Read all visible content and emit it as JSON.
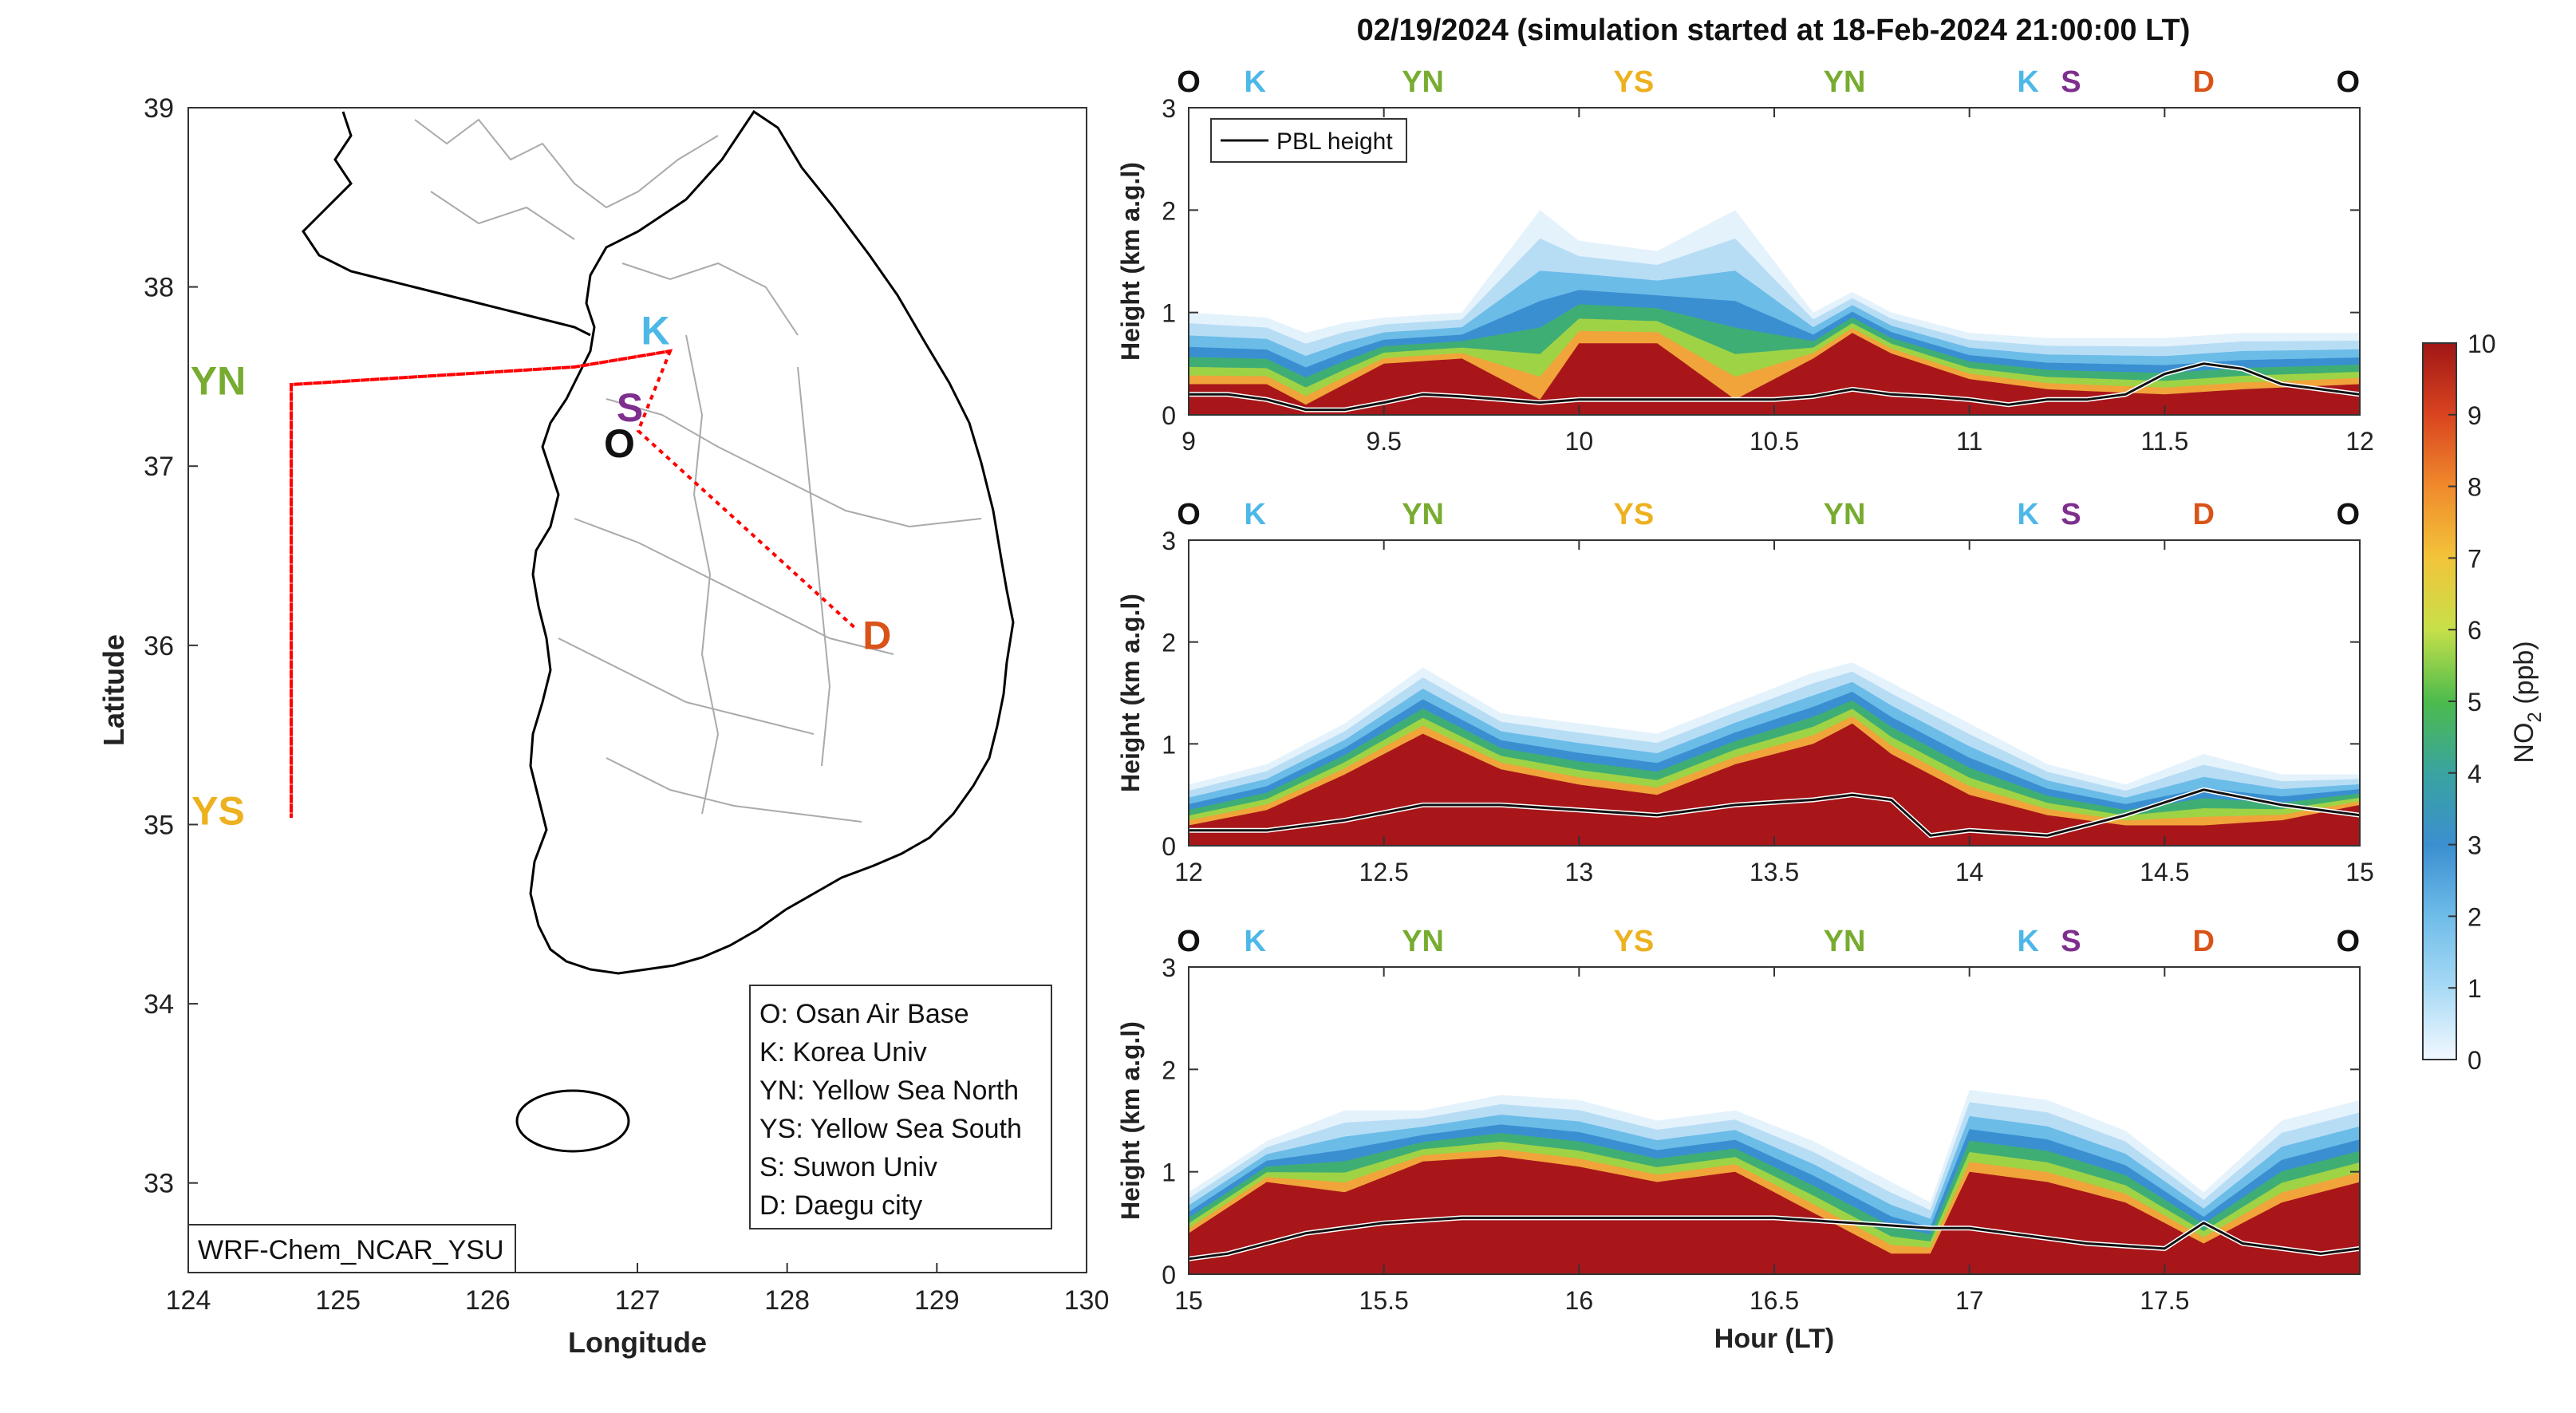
{
  "title": "02/19/2024 (simulation started at 18-Feb-2024 21:00:00 LT)",
  "colors": {
    "O": "#111111",
    "K": "#4db8e8",
    "YN": "#77ac30",
    "YS": "#edb120",
    "S": "#7e2f8e",
    "D": "#d95319",
    "route": "#ff0000",
    "pbl": "#111111"
  },
  "map": {
    "xlabel": "Longitude",
    "ylabel": "Latitude",
    "xlim": [
      124,
      130
    ],
    "ylim": [
      32.5,
      39
    ],
    "xticks": [
      "124",
      "125",
      "126",
      "127",
      "128",
      "129",
      "130"
    ],
    "yticks": [
      "33",
      "34",
      "35",
      "36",
      "37",
      "38",
      "39"
    ],
    "model_label": "WRF-Chem_NCAR_YSU",
    "site_labels": [
      {
        "code": "K",
        "lon": 127.12,
        "lat": 37.68
      },
      {
        "code": "YN",
        "lon": 124.2,
        "lat": 37.4
      },
      {
        "code": "S",
        "lon": 126.95,
        "lat": 37.25
      },
      {
        "code": "O",
        "lon": 126.88,
        "lat": 37.05
      },
      {
        "code": "D",
        "lon": 128.6,
        "lat": 35.98
      },
      {
        "code": "YS",
        "lon": 124.2,
        "lat": 35.0
      }
    ],
    "legend": [
      "O: Osan Air Base",
      "K: Korea Univ",
      "YN: Yellow Sea North",
      "YS: Yellow Sea South",
      "S: Suwon Univ",
      "D: Daegu city"
    ]
  },
  "chart_data": [
    {
      "type": "heatmap",
      "description_of_fill": "NO2 concentration (ppb) vs time and height; dense layer below ~0.5 km",
      "xlim": [
        9,
        12
      ],
      "ylim": [
        0,
        3
      ],
      "xticks": [
        "9",
        "9.5",
        "10",
        "10.5",
        "11",
        "11.5",
        "12"
      ],
      "yticks": [
        "0",
        "1",
        "2",
        "3"
      ],
      "xlabel": "",
      "ylabel": "Height (km a.g.l)",
      "legend": "PBL height",
      "top_labels": [
        {
          "code": "O",
          "x": 9.0
        },
        {
          "code": "K",
          "x": 9.17
        },
        {
          "code": "YN",
          "x": 9.6
        },
        {
          "code": "YS",
          "x": 10.14
        },
        {
          "code": "YN",
          "x": 10.68
        },
        {
          "code": "K",
          "x": 11.15
        },
        {
          "code": "S",
          "x": 11.26
        },
        {
          "code": "D",
          "x": 11.6
        },
        {
          "code": "O",
          "x": 11.97
        }
      ],
      "pbl_height": {
        "x": [
          9.0,
          9.1,
          9.2,
          9.3,
          9.4,
          9.5,
          9.6,
          9.7,
          9.8,
          9.9,
          10.0,
          10.1,
          10.2,
          10.3,
          10.4,
          10.5,
          10.6,
          10.7,
          10.8,
          10.9,
          11.0,
          11.1,
          11.2,
          11.3,
          11.4,
          11.5,
          11.6,
          11.7,
          11.8,
          11.9,
          12.0
        ],
        "y": [
          0.2,
          0.2,
          0.15,
          0.05,
          0.05,
          0.12,
          0.2,
          0.18,
          0.15,
          0.12,
          0.15,
          0.15,
          0.15,
          0.15,
          0.15,
          0.15,
          0.18,
          0.25,
          0.2,
          0.18,
          0.15,
          0.1,
          0.15,
          0.15,
          0.2,
          0.4,
          0.5,
          0.45,
          0.3,
          0.25,
          0.2
        ]
      },
      "no2_layer_top": {
        "x": [
          9.0,
          9.2,
          9.3,
          9.4,
          9.5,
          9.7,
          9.9,
          10.0,
          10.2,
          10.4,
          10.6,
          10.7,
          10.8,
          11.0,
          11.2,
          11.5,
          11.7,
          12.0
        ],
        "y": [
          1.0,
          0.95,
          0.8,
          0.9,
          0.95,
          1.0,
          2.0,
          1.7,
          1.6,
          2.0,
          1.0,
          1.2,
          1.0,
          0.8,
          0.75,
          0.75,
          0.8,
          0.8
        ]
      },
      "no2_core_top": {
        "x": [
          9.0,
          9.2,
          9.3,
          9.4,
          9.5,
          9.7,
          9.9,
          10.0,
          10.2,
          10.4,
          10.6,
          10.7,
          10.8,
          11.0,
          11.2,
          11.5,
          11.7,
          12.0
        ],
        "y": [
          0.3,
          0.3,
          0.1,
          0.3,
          0.5,
          0.55,
          0.15,
          0.7,
          0.7,
          0.15,
          0.55,
          0.8,
          0.6,
          0.35,
          0.25,
          0.2,
          0.25,
          0.3
        ]
      }
    },
    {
      "type": "heatmap",
      "xlim": [
        12,
        15
      ],
      "ylim": [
        0,
        3
      ],
      "xticks": [
        "12",
        "12.5",
        "13",
        "13.5",
        "14",
        "14.5",
        "15"
      ],
      "yticks": [
        "0",
        "1",
        "2",
        "3"
      ],
      "xlabel": "",
      "ylabel": "Height (km a.g.l)",
      "top_labels": [
        {
          "code": "O",
          "x": 12.0
        },
        {
          "code": "K",
          "x": 12.17
        },
        {
          "code": "YN",
          "x": 12.6
        },
        {
          "code": "YS",
          "x": 13.14
        },
        {
          "code": "YN",
          "x": 13.68
        },
        {
          "code": "K",
          "x": 14.15
        },
        {
          "code": "S",
          "x": 14.26
        },
        {
          "code": "D",
          "x": 14.6
        },
        {
          "code": "O",
          "x": 14.97
        }
      ],
      "pbl_height": {
        "x": [
          12.0,
          12.2,
          12.4,
          12.6,
          12.8,
          13.0,
          13.2,
          13.4,
          13.6,
          13.7,
          13.8,
          13.9,
          14.0,
          14.2,
          14.4,
          14.6,
          14.8,
          15.0
        ],
        "y": [
          0.15,
          0.15,
          0.25,
          0.4,
          0.4,
          0.35,
          0.3,
          0.4,
          0.45,
          0.5,
          0.45,
          0.1,
          0.15,
          0.1,
          0.3,
          0.55,
          0.4,
          0.3
        ]
      },
      "no2_layer_top": {
        "x": [
          12.0,
          12.2,
          12.4,
          12.6,
          12.8,
          13.0,
          13.2,
          13.4,
          13.6,
          13.7,
          13.8,
          14.0,
          14.2,
          14.4,
          14.6,
          14.8,
          15.0
        ],
        "y": [
          0.6,
          0.8,
          1.2,
          1.75,
          1.3,
          1.2,
          1.1,
          1.4,
          1.7,
          1.8,
          1.6,
          1.2,
          0.8,
          0.6,
          0.9,
          0.7,
          0.7
        ]
      },
      "no2_core_top": {
        "x": [
          12.0,
          12.2,
          12.4,
          12.6,
          12.8,
          13.0,
          13.2,
          13.4,
          13.6,
          13.7,
          13.8,
          14.0,
          14.2,
          14.4,
          14.6,
          14.8,
          15.0
        ],
        "y": [
          0.2,
          0.35,
          0.7,
          1.1,
          0.75,
          0.6,
          0.5,
          0.8,
          1.0,
          1.2,
          0.9,
          0.5,
          0.3,
          0.2,
          0.2,
          0.25,
          0.4
        ]
      }
    },
    {
      "type": "heatmap",
      "xlim": [
        15,
        18
      ],
      "ylim": [
        0,
        3
      ],
      "xticks": [
        "15",
        "15.5",
        "16",
        "16.5",
        "17",
        "17.5"
      ],
      "yticks": [
        "0",
        "1",
        "2",
        "3"
      ],
      "xlabel": "Hour (LT)",
      "ylabel": "Height (km a.g.l)",
      "top_labels": [
        {
          "code": "O",
          "x": 15.0
        },
        {
          "code": "K",
          "x": 15.17
        },
        {
          "code": "YN",
          "x": 15.6
        },
        {
          "code": "YS",
          "x": 16.14
        },
        {
          "code": "YN",
          "x": 16.68
        },
        {
          "code": "K",
          "x": 17.15
        },
        {
          "code": "S",
          "x": 17.26
        },
        {
          "code": "D",
          "x": 17.6
        },
        {
          "code": "O",
          "x": 17.97
        }
      ],
      "pbl_height": {
        "x": [
          15.0,
          15.1,
          15.3,
          15.5,
          15.7,
          15.9,
          16.1,
          16.3,
          16.5,
          16.7,
          16.9,
          17.0,
          17.1,
          17.3,
          17.5,
          17.6,
          17.7,
          17.9,
          18.0
        ],
        "y": [
          0.15,
          0.2,
          0.4,
          0.5,
          0.55,
          0.55,
          0.55,
          0.55,
          0.55,
          0.5,
          0.45,
          0.45,
          0.4,
          0.3,
          0.25,
          0.5,
          0.3,
          0.2,
          0.25
        ]
      },
      "no2_layer_top": {
        "x": [
          15.0,
          15.2,
          15.4,
          15.6,
          15.8,
          16.0,
          16.2,
          16.4,
          16.6,
          16.8,
          16.9,
          17.0,
          17.2,
          17.4,
          17.6,
          17.8,
          18.0
        ],
        "y": [
          0.8,
          1.3,
          1.6,
          1.6,
          1.75,
          1.7,
          1.5,
          1.6,
          1.3,
          0.9,
          0.7,
          1.8,
          1.7,
          1.4,
          0.8,
          1.5,
          1.7
        ]
      },
      "no2_core_top": {
        "x": [
          15.0,
          15.2,
          15.4,
          15.6,
          15.8,
          16.0,
          16.2,
          16.4,
          16.6,
          16.8,
          16.9,
          17.0,
          17.2,
          17.4,
          17.6,
          17.8,
          18.0
        ],
        "y": [
          0.4,
          0.9,
          0.8,
          1.1,
          1.15,
          1.05,
          0.9,
          1.0,
          0.6,
          0.2,
          0.2,
          1.0,
          0.9,
          0.7,
          0.3,
          0.7,
          0.9
        ]
      }
    }
  ],
  "colorbar": {
    "label_main": "NO",
    "label_sub": "2",
    "label_unit": " (ppb)",
    "ticks": [
      "0",
      "1",
      "2",
      "3",
      "4",
      "5",
      "6",
      "7",
      "8",
      "9",
      "10"
    ],
    "colors": [
      "#f2f8ff",
      "#a8daf5",
      "#6fbce9",
      "#3b8fd0",
      "#3aa3a0",
      "#4cbb4c",
      "#c7e04a",
      "#f2c43a",
      "#f08a2c",
      "#d94420",
      "#a01616"
    ]
  }
}
